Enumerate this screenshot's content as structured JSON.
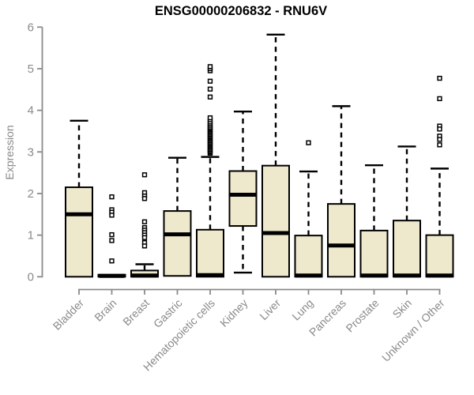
{
  "chart_data": {
    "type": "boxplot",
    "title": "ENSG00000206832 - RNU6V",
    "ylabel": "Expression",
    "xlabel": "",
    "ylim": [
      0,
      6
    ],
    "yticks": [
      0,
      1,
      2,
      3,
      4,
      5,
      6
    ],
    "grid": false,
    "legend": "none",
    "colors": {
      "box_fill": "#EEE9CC",
      "box_stroke": "#000000",
      "median": "#000000",
      "whisker": "#000000",
      "outlier_stroke": "#000000",
      "outlier_fill": "#ffffff",
      "axis": "#8a8a8a",
      "tick_text": "#8a8a8a",
      "title_text": "#000000",
      "background": "#ffffff"
    },
    "categories": [
      "Bladder",
      "Brain",
      "Breast",
      "Gastric",
      "Hematopoietic cells",
      "Kidney",
      "Liver",
      "Lung",
      "Pancreas",
      "Prostate",
      "Skin",
      "Unknown / Other"
    ],
    "boxes": [
      {
        "category": "Bladder",
        "whisker_low": 0,
        "q1": 0,
        "median": 1.5,
        "q3": 2.15,
        "whisker_high": 3.75,
        "outliers": []
      },
      {
        "category": "Brain",
        "whisker_low": 0,
        "q1": 0,
        "median": 0.02,
        "q3": 0.05,
        "whisker_high": 0.05,
        "outliers": [
          1.92,
          1.61,
          1.55,
          1.48,
          1.01,
          0.87,
          0.38
        ]
      },
      {
        "category": "Breast",
        "whisker_low": 0,
        "q1": 0,
        "median": 0.03,
        "q3": 0.15,
        "whisker_high": 0.3,
        "outliers": [
          2.45,
          2.02,
          1.94,
          1.88,
          1.32,
          1.18,
          1.12,
          1.06,
          1.0,
          0.94,
          0.82,
          0.74
        ]
      },
      {
        "category": "Gastric",
        "whisker_low": 0.02,
        "q1": 0.02,
        "median": 1.02,
        "q3": 1.58,
        "whisker_high": 2.86,
        "outliers": []
      },
      {
        "category": "Hematopoietic cells",
        "whisker_low": 0,
        "q1": 0,
        "median": 0.04,
        "q3": 1.13,
        "whisker_high": 2.88,
        "outliers": [
          2.97,
          3.0,
          3.03,
          3.06,
          3.09,
          3.12,
          3.15,
          3.18,
          3.21,
          3.24,
          3.27,
          3.3,
          3.33,
          3.36,
          3.39,
          3.42,
          3.45,
          3.48,
          3.51,
          3.54,
          3.57,
          3.6,
          3.64,
          3.68,
          3.72,
          3.77,
          3.82,
          4.32,
          4.51,
          4.7,
          4.95,
          5.0,
          5.05
        ]
      },
      {
        "category": "Kidney",
        "whisker_low": 0.1,
        "q1": 1.22,
        "median": 1.97,
        "q3": 2.54,
        "whisker_high": 3.97,
        "outliers": []
      },
      {
        "category": "Liver",
        "whisker_low": 0,
        "q1": 0,
        "median": 1.05,
        "q3": 2.67,
        "whisker_high": 5.82,
        "outliers": []
      },
      {
        "category": "Lung",
        "whisker_low": 0,
        "q1": 0,
        "median": 0.03,
        "q3": 0.99,
        "whisker_high": 2.53,
        "outliers": [
          3.22
        ]
      },
      {
        "category": "Pancreas",
        "whisker_low": 0,
        "q1": 0,
        "median": 0.75,
        "q3": 1.75,
        "whisker_high": 4.1,
        "outliers": []
      },
      {
        "category": "Prostate",
        "whisker_low": 0,
        "q1": 0,
        "median": 0.03,
        "q3": 1.11,
        "whisker_high": 2.68,
        "outliers": []
      },
      {
        "category": "Skin",
        "whisker_low": 0,
        "q1": 0,
        "median": 0.03,
        "q3": 1.35,
        "whisker_high": 3.13,
        "outliers": []
      },
      {
        "category": "Unknown / Other",
        "whisker_low": 0,
        "q1": 0,
        "median": 0.03,
        "q3": 1.0,
        "whisker_high": 2.6,
        "outliers": [
          4.77,
          4.28,
          3.62,
          3.55,
          3.38,
          3.3,
          3.17
        ]
      }
    ]
  }
}
